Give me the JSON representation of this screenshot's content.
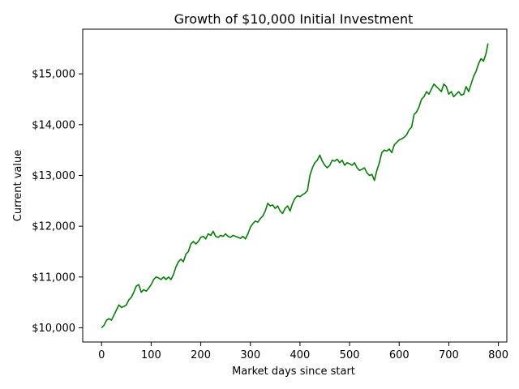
{
  "chart_data": {
    "type": "line",
    "title": "Growth of $10,000 Initial Investment",
    "xlabel": "Market days since start",
    "ylabel": "Current value",
    "xlim": [
      -38,
      817
    ],
    "ylim": [
      9720,
      15880
    ],
    "grid": false,
    "legend": "none",
    "x_ticks": [
      0,
      100,
      200,
      300,
      400,
      500,
      600,
      700,
      800
    ],
    "x_tick_labels": [
      "0",
      "100",
      "200",
      "300",
      "400",
      "500",
      "600",
      "700",
      "800"
    ],
    "y_ticks": [
      10000,
      11000,
      12000,
      13000,
      14000,
      15000
    ],
    "y_tick_labels": [
      "$10,000",
      "$11,000",
      "$12,000",
      "$13,000",
      "$14,000",
      "$15,000"
    ],
    "series": [
      {
        "color": "#008000",
        "x": [
          0,
          5,
          10,
          15,
          20,
          25,
          30,
          35,
          40,
          45,
          50,
          55,
          60,
          65,
          70,
          75,
          80,
          85,
          90,
          95,
          100,
          105,
          110,
          115,
          120,
          125,
          130,
          135,
          140,
          145,
          150,
          155,
          160,
          165,
          170,
          175,
          180,
          185,
          190,
          195,
          200,
          205,
          210,
          215,
          220,
          225,
          230,
          235,
          240,
          245,
          250,
          255,
          260,
          265,
          270,
          275,
          280,
          285,
          290,
          295,
          300,
          305,
          310,
          315,
          320,
          325,
          330,
          335,
          340,
          345,
          350,
          355,
          360,
          365,
          370,
          375,
          380,
          385,
          390,
          395,
          400,
          405,
          410,
          415,
          420,
          425,
          430,
          435,
          440,
          445,
          450,
          455,
          460,
          465,
          470,
          475,
          480,
          485,
          490,
          495,
          500,
          505,
          510,
          515,
          520,
          525,
          530,
          535,
          540,
          545,
          550,
          555,
          560,
          565,
          570,
          575,
          580,
          585,
          590,
          595,
          600,
          605,
          610,
          615,
          620,
          625,
          630,
          635,
          640,
          645,
          650,
          655,
          660,
          665,
          670,
          675,
          680,
          685,
          690,
          695,
          700,
          705,
          710,
          715,
          720,
          725,
          730,
          735,
          740,
          745,
          750,
          755,
          760,
          765,
          770,
          775,
          779
        ],
        "values": [
          10000,
          10050,
          10150,
          10180,
          10150,
          10250,
          10350,
          10450,
          10400,
          10420,
          10450,
          10550,
          10600,
          10700,
          10820,
          10850,
          10700,
          10750,
          10720,
          10780,
          10850,
          10950,
          11000,
          10980,
          10950,
          11000,
          10950,
          11000,
          10950,
          11050,
          11200,
          11300,
          11350,
          11300,
          11450,
          11500,
          11650,
          11700,
          11650,
          11700,
          11780,
          11800,
          11750,
          11850,
          11820,
          11900,
          11800,
          11780,
          11820,
          11800,
          11850,
          11800,
          11780,
          11820,
          11800,
          11780,
          11760,
          11800,
          11750,
          11850,
          11980,
          12050,
          12100,
          12080,
          12150,
          12200,
          12300,
          12450,
          12400,
          12420,
          12350,
          12400,
          12300,
          12250,
          12350,
          12400,
          12300,
          12450,
          12550,
          12600,
          12580,
          12620,
          12650,
          12700,
          13000,
          13150,
          13250,
          13300,
          13400,
          13280,
          13200,
          13150,
          13200,
          13300,
          13280,
          13320,
          13250,
          13300,
          13200,
          13250,
          13230,
          13200,
          13250,
          13150,
          13100,
          13120,
          13150,
          13050,
          13000,
          13020,
          12900,
          13100,
          13250,
          13450,
          13500,
          13480,
          13520,
          13450,
          13600,
          13650,
          13700,
          13720,
          13750,
          13800,
          13900,
          13950,
          14200,
          14250,
          14350,
          14500,
          14550,
          14650,
          14600,
          14700,
          14800,
          14750,
          14700,
          14650,
          14800,
          14750,
          14600,
          14650,
          14550,
          14600,
          14650,
          14580,
          14600,
          14750,
          14650,
          14800,
          14950,
          15050,
          15200,
          15300,
          15250,
          15400,
          15600
        ]
      }
    ]
  }
}
